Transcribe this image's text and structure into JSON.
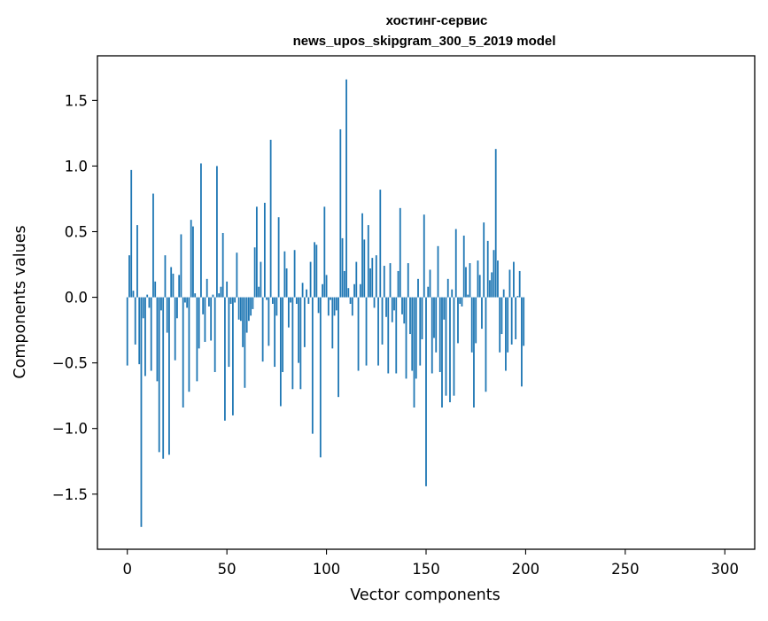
{
  "chart_data": {
    "type": "bar",
    "title_line1": "хостинг-сервис",
    "title_line2": "news_upos_skipgram_300_5_2019 model",
    "xlabel": "Vector components",
    "ylabel": "Components values",
    "xlim": [
      -15,
      315
    ],
    "ylim": [
      -1.92,
      1.84
    ],
    "grid": false,
    "bar_color": "#1f77b4",
    "xticks": [
      {
        "value": 0,
        "label": "0"
      },
      {
        "value": 50,
        "label": "50"
      },
      {
        "value": 100,
        "label": "100"
      },
      {
        "value": 150,
        "label": "150"
      },
      {
        "value": 200,
        "label": "200"
      },
      {
        "value": 250,
        "label": "250"
      },
      {
        "value": 300,
        "label": "300"
      }
    ],
    "yticks": [
      {
        "value": -1.5,
        "label": "−1.5"
      },
      {
        "value": -1.0,
        "label": "−1.0"
      },
      {
        "value": -0.5,
        "label": "−0.5"
      },
      {
        "value": 0.0,
        "label": "0.0"
      },
      {
        "value": 0.5,
        "label": "0.5"
      },
      {
        "value": 1.0,
        "label": "1.0"
      },
      {
        "value": 1.5,
        "label": "1.5"
      }
    ],
    "x_start": 0,
    "values": [
      -0.52,
      0.32,
      0.97,
      0.05,
      -0.36,
      0.55,
      -0.51,
      -1.75,
      -0.16,
      -0.6,
      0.02,
      -0.08,
      -0.56,
      0.79,
      0.12,
      -0.64,
      -1.18,
      -0.1,
      -1.23,
      0.32,
      -0.27,
      -1.2,
      0.23,
      0.18,
      -0.48,
      -0.16,
      0.17,
      0.48,
      -0.84,
      -0.04,
      -0.08,
      -0.72,
      0.59,
      0.54,
      0.03,
      -0.64,
      -0.39,
      1.02,
      -0.13,
      -0.34,
      0.14,
      -0.07,
      -0.33,
      0.02,
      -0.57,
      1.0,
      0.03,
      0.08,
      0.49,
      -0.94,
      0.12,
      -0.53,
      -0.05,
      -0.9,
      -0.04,
      0.34,
      -0.17,
      -0.18,
      -0.38,
      -0.69,
      -0.27,
      -0.18,
      -0.14,
      -0.09,
      0.38,
      0.69,
      0.08,
      0.27,
      -0.49,
      0.72,
      -0.02,
      -0.37,
      1.2,
      -0.05,
      -0.53,
      -0.14,
      0.61,
      -0.83,
      -0.57,
      0.35,
      0.22,
      -0.23,
      -0.04,
      -0.7,
      0.36,
      -0.05,
      -0.5,
      -0.7,
      0.11,
      -0.38,
      0.06,
      -0.05,
      0.27,
      -1.04,
      0.42,
      0.4,
      -0.12,
      -1.22,
      0.1,
      0.69,
      0.17,
      -0.14,
      -0.02,
      -0.39,
      -0.14,
      -0.1,
      -0.76,
      1.28,
      0.45,
      0.2,
      1.66,
      0.07,
      -0.05,
      -0.14,
      0.1,
      0.27,
      -0.56,
      0.1,
      0.64,
      0.44,
      -0.52,
      0.55,
      0.22,
      0.3,
      -0.08,
      0.32,
      -0.52,
      0.82,
      -0.36,
      0.24,
      -0.15,
      -0.58,
      0.26,
      -0.19,
      -0.1,
      -0.58,
      0.2,
      0.68,
      -0.13,
      -0.2,
      -0.62,
      0.26,
      -0.28,
      -0.56,
      -0.84,
      -0.62,
      0.14,
      -0.52,
      -0.32,
      0.63,
      -1.44,
      0.08,
      0.21,
      -0.58,
      -0.31,
      -0.42,
      0.39,
      -0.57,
      -0.84,
      -0.17,
      -0.75,
      0.14,
      -0.8,
      0.06,
      -0.75,
      0.52,
      -0.35,
      -0.05,
      -0.07,
      0.47,
      0.23,
      0.02,
      0.26,
      -0.42,
      -0.84,
      -0.35,
      0.28,
      0.17,
      -0.24,
      0.57,
      -0.72,
      0.43,
      0.13,
      0.19,
      0.36,
      1.13,
      0.28,
      -0.42,
      -0.28,
      0.06,
      -0.56,
      -0.42,
      0.21,
      -0.36,
      0.27,
      -0.32,
      0.01,
      0.2,
      -0.68,
      -0.37
    ]
  }
}
